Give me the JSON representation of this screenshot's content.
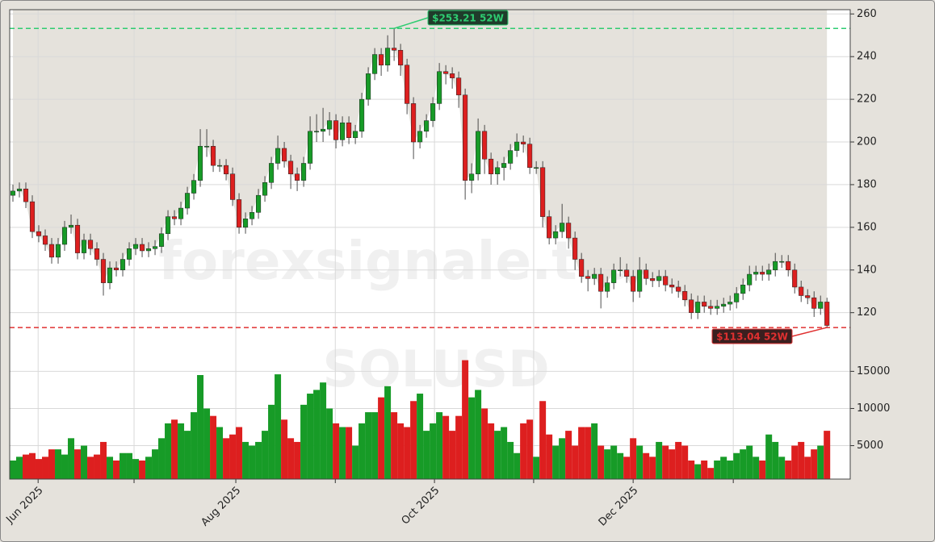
{
  "chart_data": {
    "type": "candlestick",
    "watermark": "forexsignale.trade",
    "symbol": "SOLUSD",
    "up_color": "#179b27",
    "down_color": "#dd1f1f",
    "xlim": [
      -0.5,
      129.6
    ],
    "xticks": [
      {
        "value": 3.9,
        "label": "Jun 2025"
      },
      {
        "value": 18.75,
        "label": null
      },
      {
        "value": 34.5,
        "label": "Aug 2025"
      },
      {
        "value": 49.9,
        "label": null
      },
      {
        "value": 65.25,
        "label": "Oct 2025"
      },
      {
        "value": 80.6,
        "label": null
      },
      {
        "value": 96,
        "label": "Dec 2025"
      },
      {
        "value": 111.5,
        "label": null
      }
    ],
    "ylim": [
      104,
      262
    ],
    "yticks": [
      120,
      140,
      160,
      180,
      200,
      220,
      240,
      260
    ],
    "volume_ylim": [
      500,
      18300
    ],
    "volume_yticks": [
      5000,
      10000,
      15000
    ],
    "grid": true,
    "annotations": [
      {
        "value": 253.21,
        "label": "$253.21 52W",
        "color": "#2ecc71",
        "index": 59
      },
      {
        "value": 113.04,
        "label": "$113.04 52W",
        "color": "#e03030",
        "index": 126
      }
    ],
    "open": [
      175,
      177,
      178,
      172,
      158,
      156,
      152,
      146,
      152,
      160,
      161,
      148,
      154,
      150,
      145,
      134,
      141,
      140,
      145,
      150,
      152,
      149,
      150,
      151,
      157,
      165,
      164,
      169,
      176,
      182,
      198,
      198,
      189,
      189,
      185,
      173,
      160,
      164,
      167,
      175,
      181,
      190,
      197,
      191,
      185,
      182,
      190,
      205,
      205,
      206,
      210,
      201,
      209,
      202,
      205,
      220,
      232,
      241,
      236,
      244,
      243,
      236,
      218,
      200,
      205,
      210,
      218,
      233,
      232,
      230,
      222,
      182,
      185,
      205,
      192,
      185,
      188,
      190,
      196,
      200,
      199,
      188,
      188,
      165,
      155,
      158,
      162,
      155,
      145,
      137,
      136,
      138,
      130,
      134,
      140,
      140,
      137,
      130,
      140,
      136,
      135,
      137,
      133,
      132,
      130,
      126,
      120,
      125,
      123,
      122,
      123,
      124,
      125,
      129,
      133,
      138,
      139,
      138,
      140,
      144,
      144,
      140,
      132,
      128,
      127,
      122,
      125
    ],
    "high": [
      180,
      181,
      181,
      175,
      161,
      159,
      155,
      155,
      163,
      166,
      164,
      157,
      157,
      153,
      148,
      144,
      144,
      148,
      153,
      155,
      155,
      153,
      154,
      160,
      168,
      168,
      172,
      179,
      185,
      206,
      206,
      201,
      192,
      192,
      188,
      176,
      167,
      170,
      178,
      184,
      193,
      203,
      200,
      194,
      188,
      193,
      212,
      213,
      216,
      214,
      213,
      212,
      212,
      208,
      223,
      235,
      244,
      244,
      250,
      253.21,
      246,
      239,
      221,
      208,
      213,
      221,
      237,
      236,
      235,
      233,
      225,
      190,
      211,
      208,
      195,
      191,
      193,
      199,
      204,
      203,
      202,
      191,
      191,
      168,
      161,
      171,
      165,
      158,
      148,
      140,
      141,
      141,
      137,
      143,
      146,
      143,
      140,
      146,
      143,
      139,
      140,
      140,
      136,
      135,
      133,
      129,
      128,
      128,
      126,
      126,
      127,
      128,
      132,
      136,
      142,
      142,
      142,
      143,
      148,
      147,
      147,
      143,
      135,
      131,
      130,
      128,
      127
    ],
    "low": [
      172,
      174,
      169,
      155,
      153,
      149,
      143,
      143,
      149,
      157,
      145,
      145,
      147,
      142,
      128,
      131,
      137,
      137,
      142,
      147,
      146,
      146,
      147,
      148,
      154,
      161,
      161,
      166,
      173,
      179,
      193,
      186,
      186,
      182,
      170,
      157,
      157,
      161,
      164,
      172,
      178,
      187,
      188,
      178,
      177,
      179,
      187,
      200,
      200,
      203,
      197,
      198,
      199,
      199,
      202,
      217,
      229,
      231,
      233,
      238,
      231,
      213,
      192,
      197,
      202,
      207,
      215,
      227,
      225,
      216,
      173,
      176,
      182,
      185,
      180,
      180,
      182,
      187,
      193,
      195,
      185,
      185,
      160,
      152,
      152,
      155,
      150,
      140,
      134,
      130,
      133,
      122,
      127,
      131,
      137,
      134,
      125,
      127,
      133,
      132,
      132,
      130,
      129,
      127,
      123,
      117,
      117,
      120,
      119,
      119,
      120,
      121,
      122,
      126,
      130,
      135,
      135,
      135,
      137,
      141,
      137,
      129,
      125,
      124,
      118,
      119,
      113.04
    ],
    "close": [
      177,
      178,
      172,
      158,
      156,
      152,
      146,
      152,
      160,
      161,
      148,
      154,
      150,
      145,
      134,
      141,
      140,
      145,
      150,
      152,
      149,
      150,
      151,
      157,
      165,
      164,
      169,
      176,
      182,
      198,
      198,
      189,
      189,
      185,
      173,
      160,
      164,
      167,
      175,
      181,
      190,
      197,
      191,
      185,
      182,
      190,
      205,
      205,
      206,
      210,
      201,
      209,
      202,
      205,
      220,
      232,
      241,
      236,
      244,
      243,
      236,
      218,
      200,
      205,
      210,
      218,
      233,
      232,
      230,
      222,
      182,
      185,
      205,
      192,
      185,
      188,
      190,
      196,
      200,
      199,
      188,
      188,
      165,
      155,
      158,
      162,
      155,
      145,
      137,
      136,
      138,
      130,
      134,
      140,
      140,
      137,
      130,
      140,
      136,
      135,
      137,
      133,
      132,
      130,
      126,
      120,
      125,
      123,
      122,
      123,
      124,
      125,
      129,
      133,
      138,
      139,
      138,
      140,
      144,
      144,
      140,
      132,
      128,
      127,
      122,
      125,
      114
    ],
    "volume": [
      3000,
      3500,
      3800,
      4000,
      3200,
      3500,
      4500,
      4500,
      3800,
      6000,
      4500,
      5000,
      3500,
      3800,
      5500,
      3500,
      3000,
      4000,
      4000,
      3200,
      3000,
      3500,
      4500,
      6000,
      8000,
      8500,
      8000,
      7000,
      9500,
      14500,
      10000,
      9000,
      7500,
      6000,
      6500,
      7500,
      5500,
      5000,
      5500,
      7000,
      10500,
      14600,
      8500,
      6000,
      5500,
      10500,
      12000,
      12500,
      13500,
      10000,
      8000,
      7500,
      7500,
      5000,
      8000,
      9500,
      9500,
      11500,
      13000,
      9500,
      8000,
      7500,
      11000,
      12000,
      7000,
      8000,
      9500,
      9000,
      7000,
      9000,
      16500,
      11500,
      12500,
      10000,
      8000,
      7000,
      7500,
      5500,
      4000,
      8000,
      8500,
      3500,
      11000,
      6500,
      5000,
      6000,
      7000,
      5000,
      7500,
      7500,
      8000,
      5000,
      4500,
      5000,
      4000,
      3500,
      6000,
      5000,
      4000,
      3500,
      5500,
      5000,
      4500,
      5500,
      5000,
      3000,
      2500,
      3000,
      2000,
      3000,
      3500,
      3000,
      4000,
      4500,
      5000,
      3500,
      3000,
      6500,
      5500,
      3500,
      3000,
      5000,
      5500,
      3500,
      4500,
      5000,
      7000
    ]
  }
}
